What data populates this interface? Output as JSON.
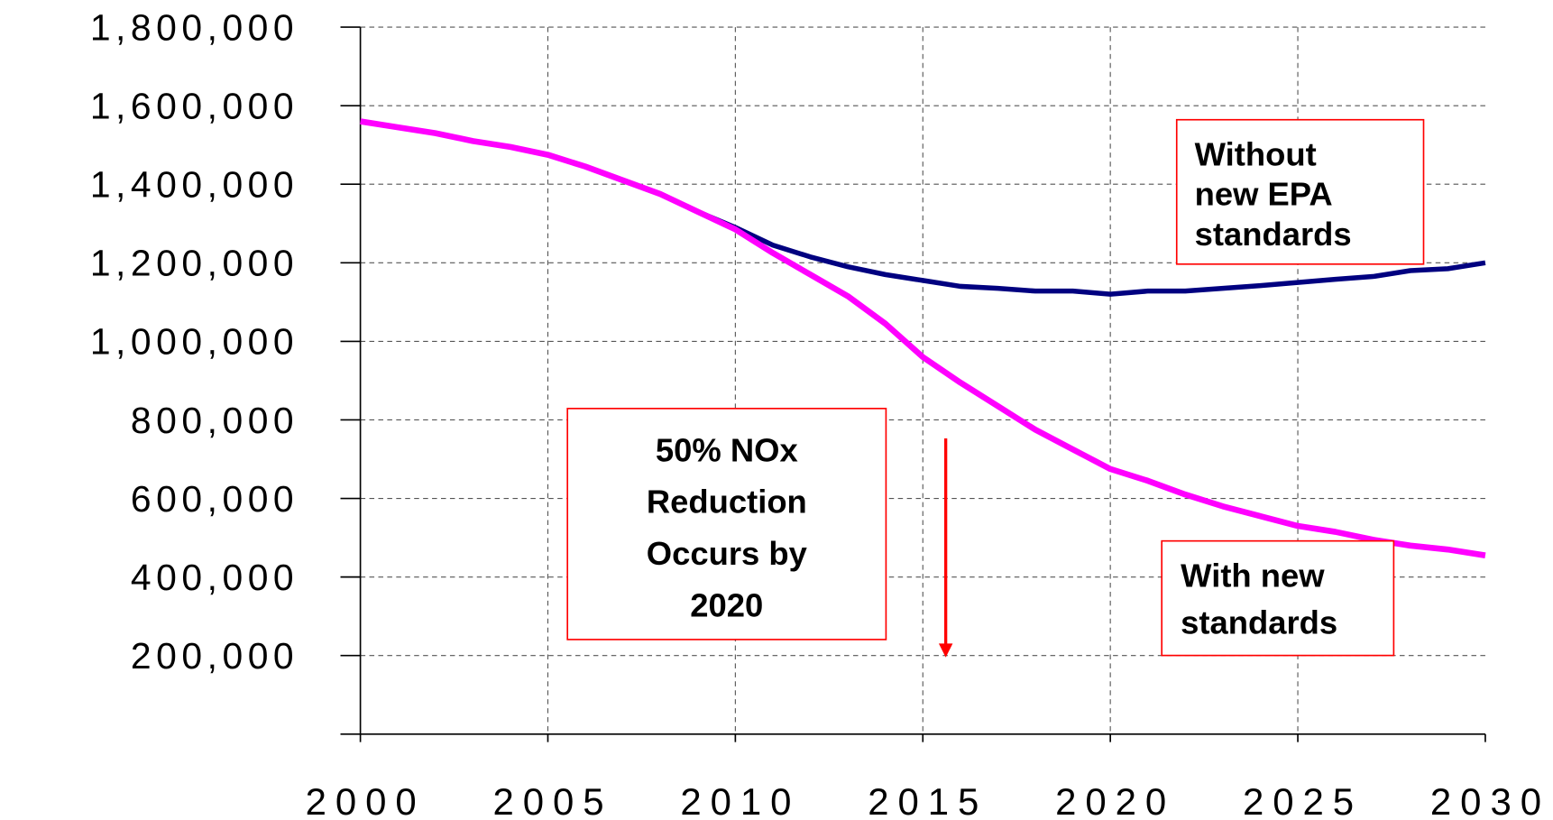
{
  "chart_data": {
    "type": "line",
    "x": [
      2000,
      2001,
      2002,
      2003,
      2004,
      2005,
      2006,
      2007,
      2008,
      2009,
      2010,
      2011,
      2012,
      2013,
      2014,
      2015,
      2016,
      2017,
      2018,
      2019,
      2020,
      2021,
      2022,
      2023,
      2024,
      2025,
      2026,
      2027,
      2028,
      2029,
      2030
    ],
    "series": [
      {
        "color": "#000080",
        "values": [
          1560000,
          1545000,
          1530000,
          1510000,
          1495000,
          1475000,
          1445000,
          1410000,
          1375000,
          1330000,
          1290000,
          1245000,
          1215000,
          1190000,
          1170000,
          1155000,
          1140000,
          1135000,
          1128000,
          1128000,
          1120000,
          1128000,
          1128000,
          1135000,
          1142000,
          1150000,
          1158000,
          1165000,
          1180000,
          1185000,
          1200000
        ]
      },
      {
        "color": "#ff00ff",
        "values": [
          1560000,
          1545000,
          1530000,
          1510000,
          1495000,
          1475000,
          1445000,
          1410000,
          1375000,
          1330000,
          1285000,
          1225000,
          1170000,
          1115000,
          1045000,
          960000,
          895000,
          835000,
          775000,
          725000,
          675000,
          645000,
          610000,
          580000,
          555000,
          530000,
          515000,
          495000,
          480000,
          470000,
          455000
        ]
      }
    ],
    "xlim": [
      2000,
      2030
    ],
    "xticks": [
      2000,
      2005,
      2010,
      2015,
      2020,
      2025,
      2030
    ],
    "ylim": [
      0,
      1800000
    ],
    "yticks": [
      {
        "value": 200000,
        "label": "200,000"
      },
      {
        "value": 400000,
        "label": "400,000"
      },
      {
        "value": 600000,
        "label": "600,000"
      },
      {
        "value": 800000,
        "label": "800,000"
      },
      {
        "value": 1000000,
        "label": "1,000,000"
      },
      {
        "value": 1200000,
        "label": "1,200,000"
      },
      {
        "value": 1400000,
        "label": "1,400,000"
      },
      {
        "value": 1600000,
        "label": "1,600,000"
      },
      {
        "value": 1800000,
        "label": "1,800,000"
      }
    ],
    "grid": true,
    "annotations": [
      {
        "lines": [
          "Without",
          "new EPA",
          "standards"
        ]
      },
      {
        "lines": [
          "50% NOx",
          "Reduction",
          "Occurs by",
          "2020"
        ]
      },
      {
        "lines": [
          "With new",
          "standards"
        ]
      }
    ]
  }
}
